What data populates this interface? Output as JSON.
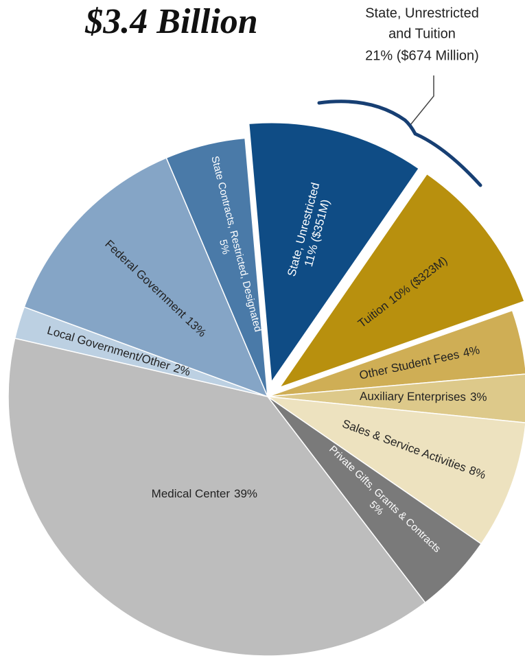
{
  "chart_data": {
    "type": "pie",
    "title": "$3.4 Billion",
    "annotation": [
      "State, Unrestricted",
      "and Tuition",
      "21% ($674 Million)"
    ],
    "categories": [
      "State, Unrestricted",
      "Tuition",
      "Other Student Fees",
      "Auxiliary Enterprises",
      "Sales & Service Activities",
      "Private Gifts, Grants & Contracts",
      "Medical Center",
      "Local Government/Other",
      "Federal Government",
      "State Contracts, Restricted, Designated"
    ],
    "values": [
      11,
      10,
      4,
      3,
      8,
      5,
      39,
      2,
      13,
      5
    ],
    "value_labels": [
      "11% ($351M)",
      "10% ($323M)",
      "4%",
      "3%",
      "8%",
      "5%",
      "39%",
      "2%",
      "13%",
      "5%"
    ],
    "colors": [
      "#0f4c85",
      "#b8900e",
      "#cfae55",
      "#ddc98a",
      "#ede2bf",
      "#7a7a7a",
      "#bdbdbd",
      "#bcd0e2",
      "#85a5c6",
      "#4a7aa8"
    ],
    "explode": [
      true,
      true,
      false,
      false,
      false,
      false,
      false,
      false,
      false,
      false
    ]
  }
}
